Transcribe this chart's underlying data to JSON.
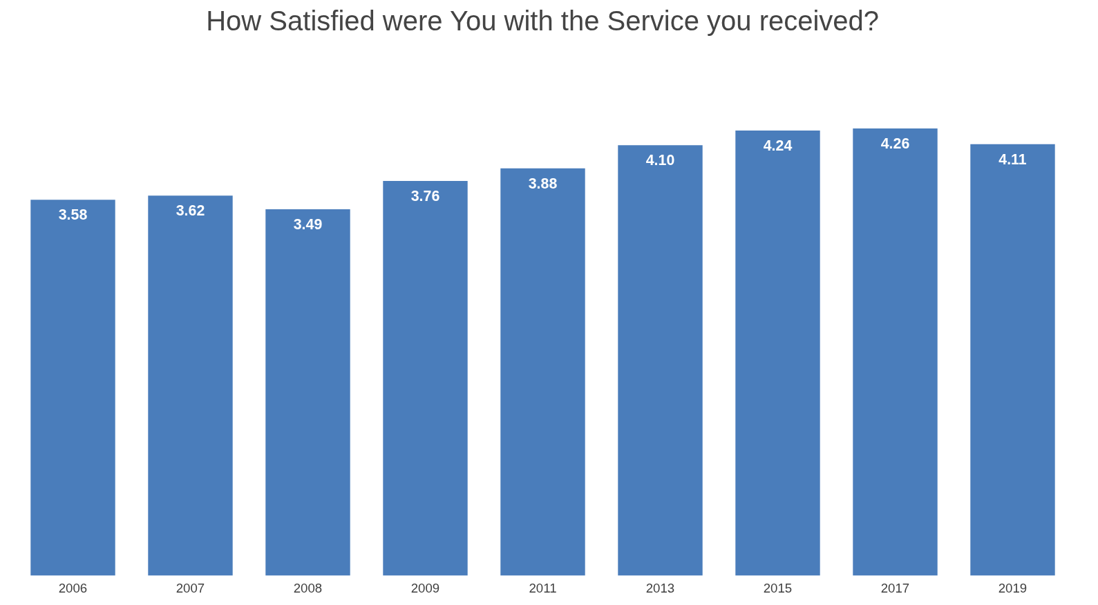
{
  "chart_data": {
    "type": "bar",
    "title": "How Satisfied were You with the Service you received?",
    "categories": [
      "2006",
      "2007",
      "2008",
      "2009",
      "2011",
      "2013",
      "2015",
      "2017",
      "2019"
    ],
    "values": [
      3.58,
      3.62,
      3.49,
      3.76,
      3.88,
      4.1,
      4.24,
      4.26,
      4.11
    ],
    "value_labels": [
      "3.58",
      "3.62",
      "3.49",
      "3.76",
      "3.88",
      "4.10",
      "4.24",
      "4.26",
      "4.11"
    ],
    "color": "#4a7dbb",
    "grid": false
  }
}
